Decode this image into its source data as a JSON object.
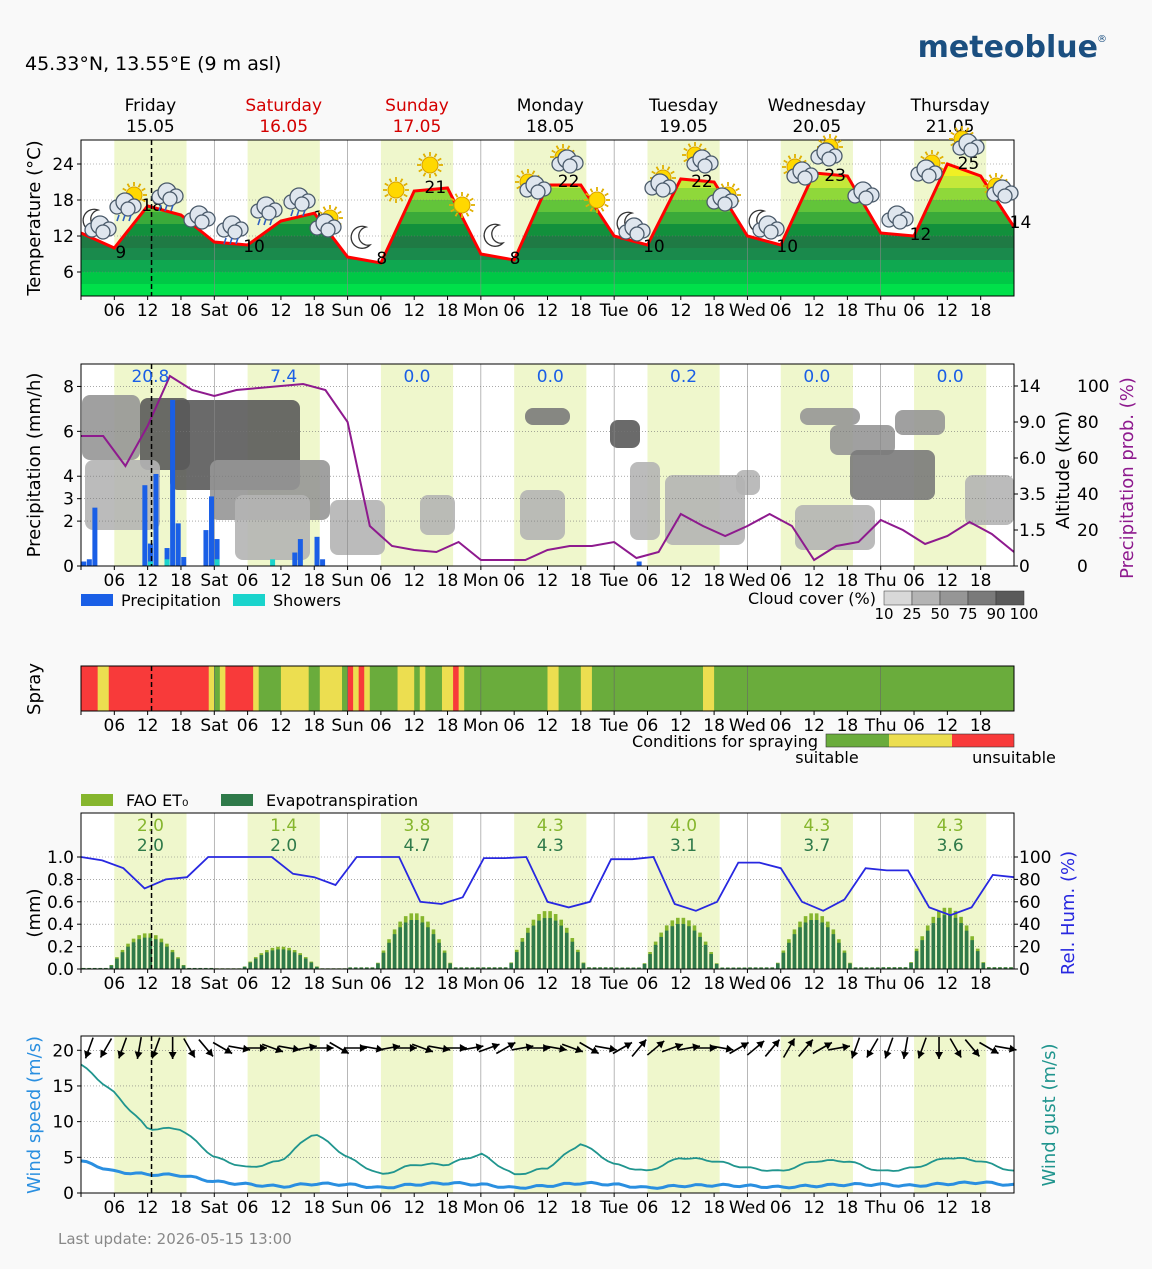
{
  "header": {
    "location": "45.33°N, 13.55°E (9 m asl)",
    "brand": "meteoblue",
    "last_update": "Last update: 2026-05-15 13:00"
  },
  "days": [
    {
      "name": "Friday",
      "date": "15.05",
      "weekend": false,
      "short": ""
    },
    {
      "name": "Saturday",
      "date": "16.05",
      "weekend": true,
      "short": "Sat"
    },
    {
      "name": "Sunday",
      "date": "17.05",
      "weekend": true,
      "short": "Sun"
    },
    {
      "name": "Monday",
      "date": "18.05",
      "weekend": false,
      "short": "Mon"
    },
    {
      "name": "Tuesday",
      "date": "19.05",
      "weekend": false,
      "short": "Tue"
    },
    {
      "name": "Wednesday",
      "date": "20.05",
      "weekend": false,
      "short": "Wed"
    },
    {
      "name": "Thursday",
      "date": "21.05",
      "weekend": false,
      "short": "Thu"
    }
  ],
  "hour_ticks": [
    "06",
    "12",
    "18"
  ],
  "colors": {
    "day_band": "#eff7cc",
    "temp_line": "#ff0000",
    "precip": "#1a5fe6",
    "showers": "#1ad4cc",
    "precip_prob": "#8e1a8e",
    "suitable": "#6aac3c",
    "marginal": "#ecde50",
    "unsuitable": "#f83a3a",
    "fao": "#86b62e",
    "evapo": "#2f7a4a",
    "humidity": "#2828e0",
    "wind_speed": "#2a8fe0",
    "wind_gust": "#20958e",
    "weekend_text": "#d40000",
    "brand": "#1b4f80",
    "cloud_scale": [
      "#d8d8d8",
      "#b4b4b4",
      "#969696",
      "#7a7a7a",
      "#5a5a5a"
    ]
  },
  "chart_data": [
    {
      "type": "area",
      "id": "temperature",
      "ylabel": "Temperature (°C)",
      "ylim": [
        2,
        28
      ],
      "yticks": [
        6,
        12,
        18,
        24
      ],
      "x_hours": [
        0,
        6,
        12,
        18,
        24,
        30,
        36,
        42,
        48,
        54,
        60,
        66,
        72,
        78,
        84,
        90,
        96,
        102,
        108,
        114,
        120,
        126,
        132,
        138,
        144,
        150,
        156,
        162,
        168
      ],
      "temperature": [
        12.5,
        10,
        17,
        15.5,
        11,
        10.5,
        14.5,
        15.8,
        8.5,
        7.5,
        19.5,
        20,
        9,
        8,
        20.5,
        20.5,
        12,
        10.5,
        21.5,
        21,
        12,
        10.5,
        22.5,
        22,
        12.5,
        12,
        24,
        22,
        13.5
      ],
      "daily_min": [
        {
          "hour": 5,
          "value": 9
        },
        {
          "hour": 29,
          "value": 10
        },
        {
          "hour": 52,
          "value": 8
        },
        {
          "hour": 76,
          "value": 8
        },
        {
          "hour": 101,
          "value": 10
        },
        {
          "hour": 125,
          "value": 10
        },
        {
          "hour": 149,
          "value": 12
        },
        {
          "hour": 167,
          "value": 14
        }
      ],
      "daily_max": [
        {
          "hour": 11,
          "value": 18
        },
        {
          "hour": 42,
          "value": 16
        },
        {
          "hour": 62,
          "value": 21
        },
        {
          "hour": 86,
          "value": 22
        },
        {
          "hour": 110,
          "value": 22
        },
        {
          "hour": 134,
          "value": 23
        },
        {
          "hour": 158,
          "value": 25
        }
      ]
    },
    {
      "type": "bar",
      "id": "precipitation",
      "ylabel": "Precipitation (mm/h)",
      "ylabel_right_altitude": "Altitude (km)",
      "ylabel_right_prob": "Precipitation prob. (%)",
      "ylim": [
        0,
        9
      ],
      "yticks": [
        0,
        2,
        3,
        4,
        6,
        8
      ],
      "altitude_ticks": [
        "0",
        "1.5",
        "3.5",
        "6.0",
        "9.0",
        "14"
      ],
      "prob_ticks": [
        "0",
        "20",
        "40",
        "60",
        "80",
        "100"
      ],
      "daily_totals": [
        "20.8",
        "7.4",
        "0.0",
        "0.0",
        "0.2",
        "0.0",
        "0.0"
      ],
      "legend": {
        "precip": "Precipitation",
        "showers": "Showers",
        "cloud": "Cloud cover (%)",
        "cloud_ticks": [
          "10",
          "25",
          "50",
          "75",
          "90",
          "100"
        ]
      },
      "precip_bars": [
        {
          "hour": 0.5,
          "value": 0.2
        },
        {
          "hour": 1.5,
          "value": 0.3
        },
        {
          "hour": 2.5,
          "value": 2.6
        },
        {
          "hour": 11.5,
          "value": 3.6
        },
        {
          "hour": 12.5,
          "value": 1.0
        },
        {
          "hour": 13.5,
          "value": 4.1
        },
        {
          "hour": 15.5,
          "value": 0.8
        },
        {
          "hour": 16.5,
          "value": 7.4
        },
        {
          "hour": 17.5,
          "value": 1.9
        },
        {
          "hour": 18.5,
          "value": 0.4
        },
        {
          "hour": 22.5,
          "value": 1.6
        },
        {
          "hour": 23.5,
          "value": 3.1
        },
        {
          "hour": 24.5,
          "value": 1.2
        },
        {
          "hour": 38.5,
          "value": 0.6
        },
        {
          "hour": 39.5,
          "value": 1.2
        },
        {
          "hour": 42.5,
          "value": 1.3
        },
        {
          "hour": 43.5,
          "value": 0.3
        },
        {
          "hour": 100.5,
          "value": 0.2
        }
      ],
      "showers_bars": [
        {
          "hour": 12.5,
          "value": 0.2
        },
        {
          "hour": 15.5,
          "value": 0.3
        },
        {
          "hour": 24.5,
          "value": 0.3
        },
        {
          "hour": 34.5,
          "value": 0.3
        }
      ],
      "precip_prob": [
        65,
        65,
        50,
        70,
        95,
        88,
        85,
        88,
        89,
        90,
        91,
        88,
        72,
        20,
        10,
        8,
        7,
        12,
        3,
        3,
        3,
        8,
        10,
        10,
        12,
        4,
        7,
        26,
        20,
        15,
        20,
        26,
        20,
        3,
        10,
        12,
        23,
        18,
        11,
        15,
        22,
        16,
        7
      ]
    },
    {
      "type": "table",
      "id": "spray",
      "ylabel": "Spray",
      "legend_title": "Conditions for spraying",
      "legend_left": "suitable",
      "legend_right": "unsuitable",
      "segments": [
        [
          0,
          3,
          "unsuitable"
        ],
        [
          3,
          5,
          "marginal"
        ],
        [
          5,
          23,
          "unsuitable"
        ],
        [
          23,
          24,
          "marginal"
        ],
        [
          24,
          25,
          "suitable"
        ],
        [
          25,
          26,
          "marginal"
        ],
        [
          26,
          31,
          "unsuitable"
        ],
        [
          31,
          32,
          "marginal"
        ],
        [
          32,
          36,
          "suitable"
        ],
        [
          36,
          41,
          "marginal"
        ],
        [
          41,
          43,
          "suitable"
        ],
        [
          43,
          47,
          "marginal"
        ],
        [
          47,
          48,
          "suitable"
        ],
        [
          48,
          49,
          "unsuitable"
        ],
        [
          49,
          50,
          "marginal"
        ],
        [
          50,
          51,
          "unsuitable"
        ],
        [
          51,
          52,
          "marginal"
        ],
        [
          52,
          57,
          "suitable"
        ],
        [
          57,
          60,
          "marginal"
        ],
        [
          60,
          61,
          "suitable"
        ],
        [
          61,
          62,
          "marginal"
        ],
        [
          62,
          65,
          "suitable"
        ],
        [
          65,
          67,
          "marginal"
        ],
        [
          67,
          68,
          "unsuitable"
        ],
        [
          68,
          69,
          "marginal"
        ],
        [
          69,
          84,
          "suitable"
        ],
        [
          84,
          86,
          "marginal"
        ],
        [
          86,
          90,
          "suitable"
        ],
        [
          90,
          92,
          "marginal"
        ],
        [
          92,
          100,
          "suitable"
        ],
        [
          100,
          112,
          "suitable"
        ],
        [
          112,
          114,
          "marginal"
        ],
        [
          114,
          116,
          "suitable"
        ],
        [
          116,
          168,
          "suitable"
        ]
      ]
    },
    {
      "type": "bar",
      "id": "evapotranspiration",
      "ylabel": "(mm)",
      "ylabel_right": "Rel. Hum. (%)",
      "ylim": [
        0,
        1.0
      ],
      "yticks": [
        "0.0",
        "0.2",
        "0.4",
        "0.6",
        "0.8",
        "1.0"
      ],
      "rh_ticks": [
        "0",
        "20",
        "40",
        "60",
        "80",
        "100"
      ],
      "legend": {
        "fao": "FAO ET₀",
        "evapo": "Evapotranspiration"
      },
      "fao_daily": [
        "2.0",
        "1.4",
        "3.8",
        "4.3",
        "4.0",
        "4.3",
        "4.3"
      ],
      "evapo_daily": [
        "2.0",
        "2.0",
        "4.7",
        "4.3",
        "3.1",
        "3.7",
        "3.6"
      ],
      "daily_peak": [
        0.32,
        0.2,
        0.5,
        0.52,
        0.46,
        0.5,
        0.55
      ],
      "humidity": [
        100,
        97,
        90,
        72,
        80,
        82,
        100,
        100,
        100,
        100,
        85,
        82,
        75,
        100,
        100,
        100,
        60,
        58,
        64,
        99,
        99,
        100,
        60,
        55,
        60,
        98,
        98,
        100,
        58,
        52,
        60,
        95,
        95,
        90,
        60,
        52,
        62,
        90,
        88,
        88,
        55,
        48,
        55,
        84,
        82
      ]
    },
    {
      "type": "line",
      "id": "wind",
      "ylabel": "Wind speed (m/s)",
      "ylabel_right": "Wind gust (m/s)",
      "ylim": [
        0,
        22
      ],
      "yticks": [
        0,
        5,
        10,
        15,
        20
      ],
      "wind_speed": [
        4.5,
        3,
        2.6,
        2.5,
        1.6,
        1.2,
        0.9,
        1.3,
        1.2,
        0.7,
        1.2,
        1.4,
        1.2,
        0.7,
        1.0,
        1.4,
        1.2,
        0.7,
        1.0,
        1.1,
        1.0,
        0.8,
        1.0,
        1.2,
        1.2,
        1.0,
        1.3,
        1.5,
        1.1
      ],
      "wind_gust": [
        18,
        14,
        9,
        9,
        5,
        3.5,
        4.5,
        8.5,
        5,
        2.5,
        4,
        4,
        5.5,
        2.5,
        3.5,
        7,
        4,
        3,
        5,
        4.5,
        3.5,
        3,
        4.5,
        4.5,
        3,
        3.5,
        5,
        4.5,
        3
      ]
    }
  ]
}
